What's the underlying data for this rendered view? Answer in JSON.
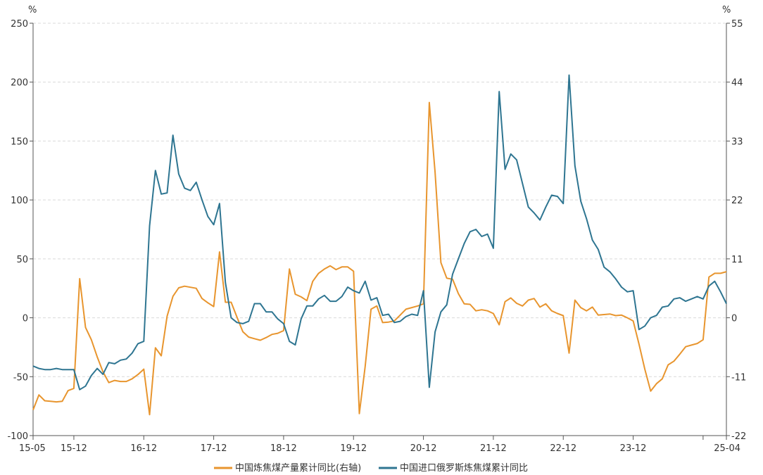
{
  "chart_data": {
    "type": "line",
    "left_unit": "%",
    "right_unit": "%",
    "x_ticks": [
      "15-05",
      "15-12",
      "16-12",
      "17-12",
      "18-12",
      "19-12",
      "20-12",
      "21-12",
      "22-12",
      "23-12",
      "25-04"
    ],
    "left_axis": {
      "ticks": [
        250,
        200,
        150,
        100,
        50,
        0,
        -50,
        -100
      ],
      "ylim": [
        -100,
        250
      ]
    },
    "right_axis": {
      "ticks": [
        55,
        44,
        33,
        22,
        11,
        0,
        -11,
        -22
      ],
      "ylim": [
        -22,
        55
      ]
    },
    "grid": "horizontal dashed",
    "legend_position": "bottom",
    "series": [
      {
        "name": "中国炼焦煤产量累计同比(右轴)",
        "axis": "right",
        "color": "#E8952E",
        "x": [
          "15-05",
          "15-06",
          "15-07",
          "15-08",
          "15-09",
          "15-10",
          "15-11",
          "15-12",
          "16-01",
          "16-02",
          "16-03",
          "16-04",
          "16-05",
          "16-06",
          "16-07",
          "16-08",
          "16-09",
          "16-10",
          "16-11",
          "16-12",
          "17-01",
          "17-02",
          "17-03",
          "17-04",
          "17-05",
          "17-06",
          "17-07",
          "17-08",
          "17-09",
          "17-10",
          "17-11",
          "17-12",
          "18-01",
          "18-02",
          "18-03",
          "18-04",
          "18-05",
          "18-06",
          "18-07",
          "18-08",
          "18-09",
          "18-10",
          "18-11",
          "18-12",
          "19-01",
          "19-02",
          "19-03",
          "19-04",
          "19-05",
          "19-06",
          "19-07",
          "19-08",
          "19-09",
          "19-10",
          "19-11",
          "19-12",
          "20-01",
          "20-02",
          "20-03",
          "20-04",
          "20-05",
          "20-06",
          "20-07",
          "20-08",
          "20-09",
          "20-10",
          "20-11",
          "20-12",
          "21-01",
          "21-02",
          "21-03",
          "21-04",
          "21-05",
          "21-06",
          "21-07",
          "21-08",
          "21-09",
          "21-10",
          "21-11",
          "21-12",
          "22-01",
          "22-02",
          "22-03",
          "22-04",
          "22-05",
          "22-06",
          "22-07",
          "22-08",
          "22-09",
          "22-10",
          "22-11",
          "22-12",
          "23-01",
          "23-02",
          "23-03",
          "23-04",
          "23-05",
          "23-06",
          "23-07",
          "23-08",
          "23-09",
          "23-10",
          "23-11",
          "23-12",
          "24-01",
          "24-02",
          "24-03",
          "24-04",
          "24-05",
          "24-06",
          "24-07",
          "24-08",
          "24-09",
          "24-10",
          "24-11",
          "24-12",
          "25-01",
          "25-02",
          "25-03",
          "25-04"
        ],
        "values": [
          -17.2,
          -14.4,
          -15.5,
          -15.6,
          -15.7,
          -15.6,
          -13.6,
          -13.2,
          7.3,
          -1.8,
          -4.1,
          -7.3,
          -10.1,
          -12.1,
          -11.7,
          -11.9,
          -11.9,
          -11.4,
          -10.6,
          -9.6,
          -18.1,
          -5.6,
          -7.1,
          0.3,
          4.0,
          5.6,
          5.9,
          5.7,
          5.5,
          3.6,
          2.8,
          2.1,
          12.3,
          2.9,
          2.9,
          0.1,
          -2.6,
          -3.6,
          -3.9,
          -4.2,
          -3.7,
          -3.1,
          -2.9,
          -2.4,
          9.1,
          4.4,
          3.9,
          3.2,
          6.8,
          8.3,
          9.1,
          9.7,
          9.0,
          9.5,
          9.5,
          8.7,
          -17.9,
          -9.1,
          1.6,
          2.2,
          -0.9,
          -0.8,
          -0.6,
          0.5,
          1.6,
          1.9,
          2.2,
          2.6,
          40.2,
          27.2,
          10.3,
          7.4,
          7.2,
          4.5,
          2.6,
          2.5,
          1.3,
          1.5,
          1.3,
          0.8,
          -1.3,
          3.0,
          3.7,
          2.7,
          2.2,
          3.3,
          3.6,
          2.0,
          2.6,
          1.3,
          0.8,
          0.4,
          -6.6,
          3.3,
          1.9,
          1.3,
          2.0,
          0.5,
          0.6,
          0.7,
          0.4,
          0.5,
          0.0,
          -0.6,
          -4.9,
          -9.6,
          -13.7,
          -12.3,
          -11.4,
          -8.8,
          -8.1,
          -6.8,
          -5.4,
          -5.1,
          -4.8,
          -4.1,
          7.6,
          8.3,
          8.3,
          8.6
        ]
      },
      {
        "name": "中国进口俄罗斯炼焦煤累计同比",
        "axis": "left",
        "color": "#2E7591",
        "x": [
          "15-05",
          "15-06",
          "15-07",
          "15-08",
          "15-09",
          "15-10",
          "15-11",
          "15-12",
          "16-01",
          "16-02",
          "16-03",
          "16-04",
          "16-05",
          "16-06",
          "16-07",
          "16-08",
          "16-09",
          "16-10",
          "16-11",
          "16-12",
          "17-01",
          "17-02",
          "17-03",
          "17-04",
          "17-05",
          "17-06",
          "17-07",
          "17-08",
          "17-09",
          "17-10",
          "17-11",
          "17-12",
          "18-01",
          "18-02",
          "18-03",
          "18-04",
          "18-05",
          "18-06",
          "18-07",
          "18-08",
          "18-09",
          "18-10",
          "18-11",
          "18-12",
          "19-01",
          "19-02",
          "19-03",
          "19-04",
          "19-05",
          "19-06",
          "19-07",
          "19-08",
          "19-09",
          "19-10",
          "19-11",
          "19-12",
          "20-01",
          "20-02",
          "20-03",
          "20-04",
          "20-05",
          "20-06",
          "20-07",
          "20-08",
          "20-09",
          "20-10",
          "20-11",
          "20-12",
          "21-01",
          "21-02",
          "21-03",
          "21-04",
          "21-05",
          "21-06",
          "21-07",
          "21-08",
          "21-09",
          "21-10",
          "21-11",
          "21-12",
          "22-01",
          "22-02",
          "22-03",
          "22-04",
          "22-05",
          "22-06",
          "22-07",
          "22-08",
          "22-09",
          "22-10",
          "22-11",
          "22-12",
          "23-01",
          "23-02",
          "23-03",
          "23-04",
          "23-05",
          "23-06",
          "23-07",
          "23-08",
          "23-09",
          "23-10",
          "23-11",
          "23-12",
          "24-01",
          "24-02",
          "24-03",
          "24-04",
          "24-05",
          "24-06",
          "24-07",
          "24-08",
          "24-09",
          "24-10",
          "24-11",
          "24-12",
          "25-01",
          "25-02",
          "25-03",
          "25-04"
        ],
        "values": [
          -41,
          -43,
          -44,
          -44,
          -43,
          -44,
          -44,
          -44,
          -61,
          -58,
          -49,
          -43,
          -48,
          -38,
          -39,
          -36,
          -35,
          -30,
          -22,
          -20,
          78,
          125,
          105,
          106,
          155,
          122,
          110,
          108,
          115,
          100,
          86,
          79,
          97,
          30,
          0,
          -4,
          -5,
          -3,
          12,
          12,
          5,
          5,
          -1,
          -5,
          -20,
          -23,
          -1,
          10,
          10,
          16,
          19,
          14,
          14,
          18,
          26,
          23,
          21,
          31,
          15,
          17,
          2,
          3,
          -4,
          -3,
          1,
          3,
          2,
          23,
          -59,
          -12,
          5,
          11,
          37,
          50,
          63,
          73,
          75,
          69,
          71,
          59,
          192,
          126,
          139,
          134,
          114,
          94,
          89,
          83,
          94,
          104,
          103,
          97,
          206,
          129,
          99,
          84,
          66,
          58,
          43,
          39,
          33,
          26,
          22,
          23,
          -10,
          -7,
          0,
          2,
          9,
          10,
          16,
          17,
          14,
          16,
          18,
          16,
          27,
          31,
          22,
          12
        ]
      }
    ]
  }
}
